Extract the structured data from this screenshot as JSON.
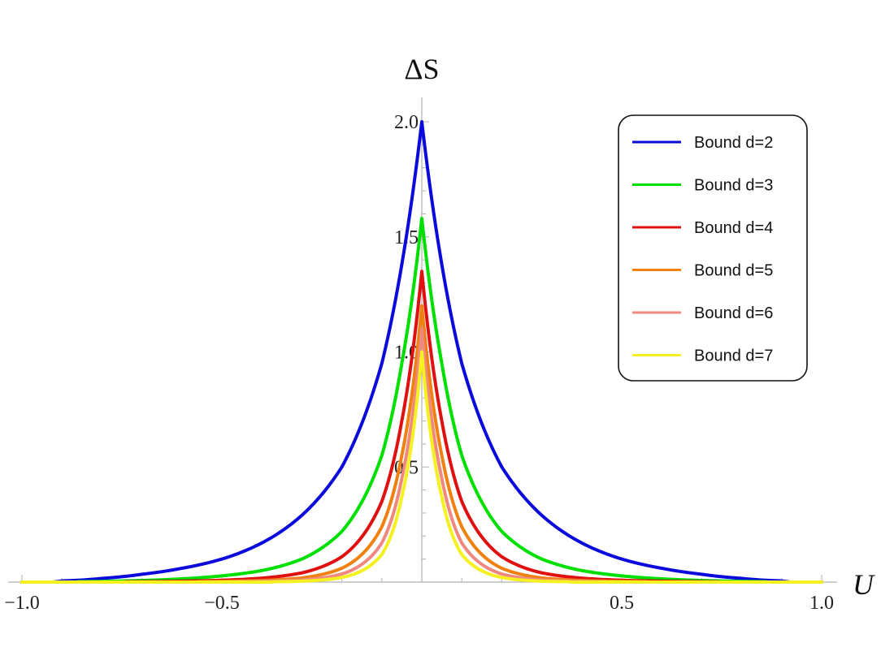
{
  "chart_data": {
    "type": "line",
    "title": "",
    "xlabel": "U",
    "ylabel": "ΔS",
    "xlim": [
      -1.0,
      1.0
    ],
    "ylim": [
      0,
      2.0
    ],
    "grid": false,
    "legend_position": "top-right",
    "x_ticks": [
      {
        "value": -1.0,
        "label": "−1.0"
      },
      {
        "value": -0.5,
        "label": "−0.5"
      },
      {
        "value": 0.5,
        "label": "0.5"
      },
      {
        "value": 1.0,
        "label": "1.0"
      }
    ],
    "y_ticks": [
      {
        "value": 0.5,
        "label": "0.5"
      },
      {
        "value": 1.0,
        "label": "1.0"
      },
      {
        "value": 1.5,
        "label": "1.5"
      },
      {
        "value": 2.0,
        "label": "2.0"
      }
    ],
    "x": [
      -1.0,
      -0.9,
      -0.8,
      -0.7,
      -0.6,
      -0.5,
      -0.4,
      -0.3,
      -0.2,
      -0.1,
      -0.05,
      0.0,
      0.05,
      0.1,
      0.2,
      0.3,
      0.4,
      0.5,
      0.6,
      0.7,
      0.8,
      0.9,
      1.0
    ],
    "series": [
      {
        "name": "Bound d=2",
        "color": "#0a0adc",
        "values": [
          0.0,
          0.005,
          0.016,
          0.034,
          0.06,
          0.1,
          0.17,
          0.29,
          0.5,
          0.95,
          1.38,
          2.0,
          1.38,
          0.95,
          0.5,
          0.29,
          0.17,
          0.1,
          0.06,
          0.034,
          0.016,
          0.005,
          0.0
        ]
      },
      {
        "name": "Bound d=3",
        "color": "#00e000",
        "values": [
          0.0,
          0.001,
          0.003,
          0.007,
          0.014,
          0.027,
          0.05,
          0.1,
          0.22,
          0.55,
          0.95,
          1.58,
          0.95,
          0.55,
          0.22,
          0.1,
          0.05,
          0.027,
          0.014,
          0.007,
          0.003,
          0.001,
          0.0
        ]
      },
      {
        "name": "Bound d=4",
        "color": "#e01010",
        "values": [
          0.0,
          0.0,
          0.001,
          0.002,
          0.004,
          0.008,
          0.017,
          0.04,
          0.11,
          0.35,
          0.7,
          1.35,
          0.7,
          0.35,
          0.11,
          0.04,
          0.017,
          0.008,
          0.004,
          0.002,
          0.001,
          0.0,
          0.0
        ]
      },
      {
        "name": "Bound d=5",
        "color": "#f08010",
        "values": [
          0.0,
          0.0,
          0.0,
          0.001,
          0.001,
          0.003,
          0.007,
          0.018,
          0.06,
          0.24,
          0.55,
          1.2,
          0.55,
          0.24,
          0.06,
          0.018,
          0.007,
          0.003,
          0.001,
          0.001,
          0.0,
          0.0,
          0.0
        ]
      },
      {
        "name": "Bound d=6",
        "color": "#f08880",
        "values": [
          0.0,
          0.0,
          0.0,
          0.0,
          0.001,
          0.001,
          0.003,
          0.009,
          0.035,
          0.17,
          0.45,
          1.1,
          0.45,
          0.17,
          0.035,
          0.009,
          0.003,
          0.001,
          0.001,
          0.0,
          0.0,
          0.0,
          0.0
        ]
      },
      {
        "name": "Bound d=7",
        "color": "#f5f020",
        "values": [
          0.0,
          0.0,
          0.0,
          0.0,
          0.0,
          0.0,
          0.001,
          0.004,
          0.02,
          0.12,
          0.37,
          1.0,
          0.37,
          0.12,
          0.02,
          0.004,
          0.001,
          0.0,
          0.0,
          0.0,
          0.0,
          0.0,
          0.0
        ]
      }
    ]
  }
}
